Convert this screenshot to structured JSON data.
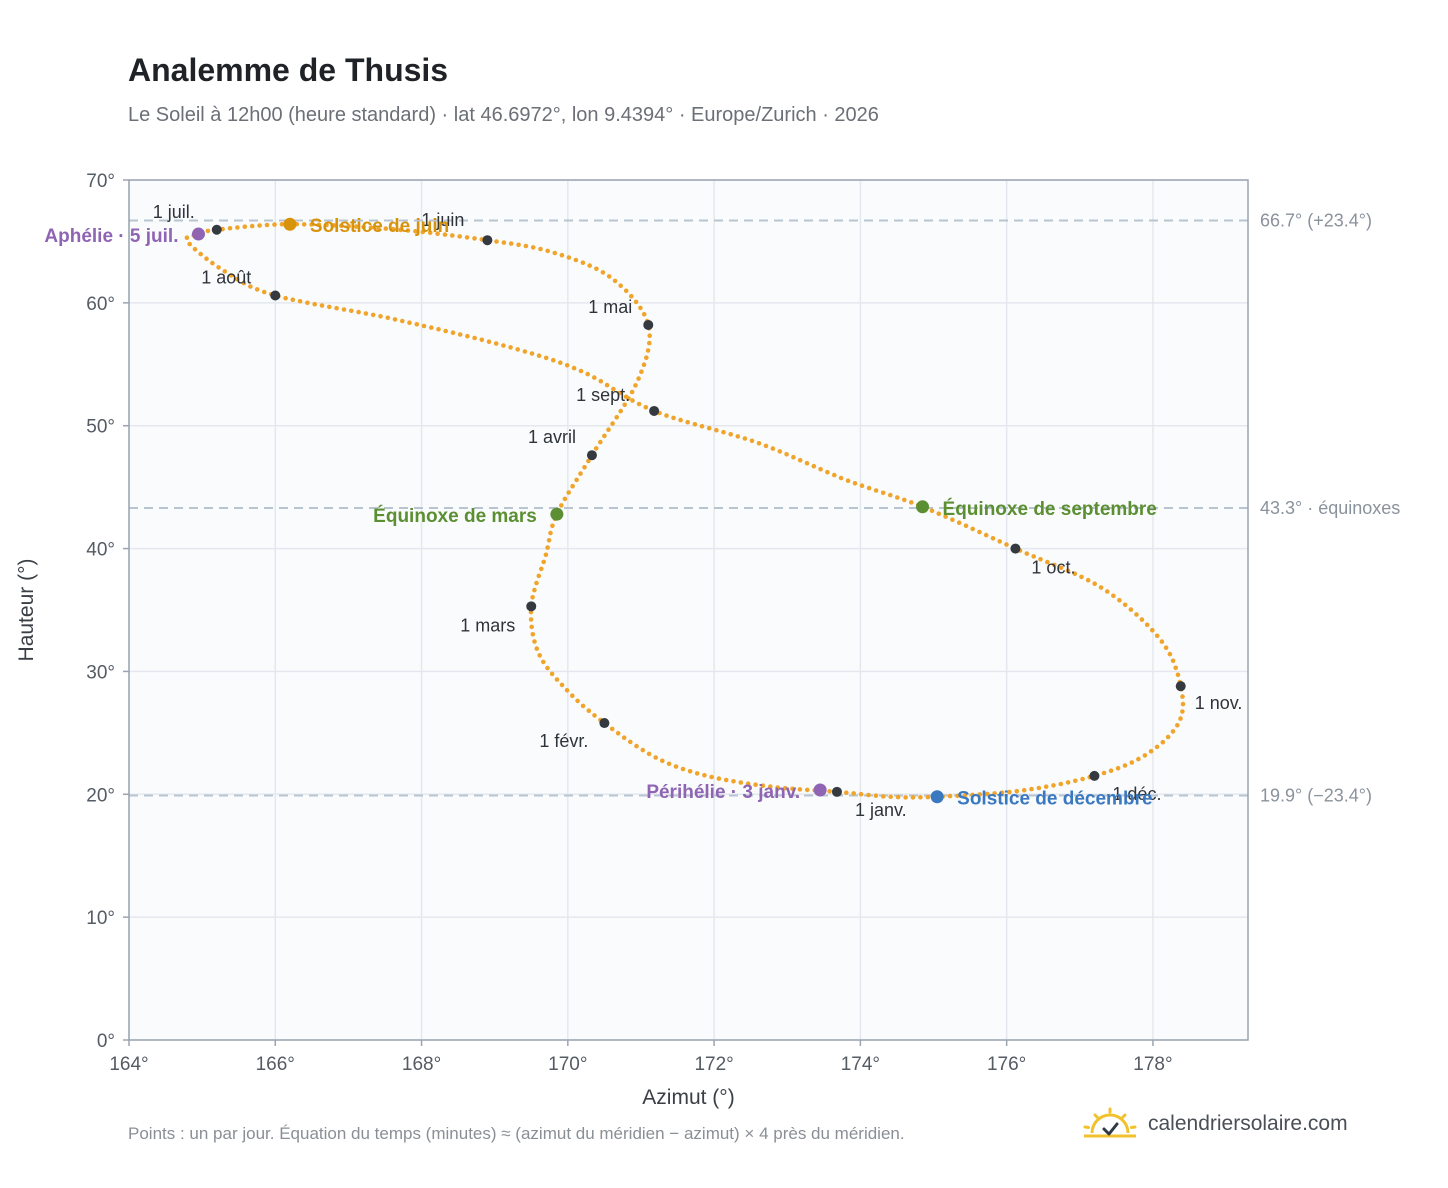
{
  "header": {
    "title": "Analemme de Thusis",
    "subtitle": "Le Soleil à 12h00 (heure standard) · lat 46.6972°, lon 9.4394° · Europe/Zurich · 2026"
  },
  "footer": {
    "note": "Points : un par jour. Équation du temps (minutes) ≈ (azimut du méridien − azimut) × 4 près du méridien.",
    "brand": "calendriersolaire.com",
    "brand_icon": "sun-check-icon"
  },
  "colors": {
    "curve": "#f0a42a",
    "month_marker": "#343a40",
    "equinox": "#5b8f31",
    "june_solstice": "#d8930c",
    "december_solstice": "#3a78bf",
    "aphelion_perihelion": "#8f65b3",
    "reference_line": "#b9c4d1",
    "plot_background": "#f9fbfd",
    "grid": "#e4e8ee"
  },
  "chart_data": {
    "type": "scatter",
    "xlabel": "Azimut (°)",
    "ylabel": "Hauteur (°)",
    "xlim": [
      164,
      179.3
    ],
    "ylim": [
      0,
      70
    ],
    "xticks": [
      164,
      166,
      168,
      170,
      172,
      174,
      176,
      178
    ],
    "xtick_labels": [
      "164°",
      "166°",
      "168°",
      "170°",
      "172°",
      "174°",
      "176°",
      "178°"
    ],
    "yticks": [
      0,
      10,
      20,
      30,
      40,
      50,
      60,
      70
    ],
    "ytick_labels": [
      "0°",
      "10°",
      "20°",
      "30°",
      "40°",
      "50°",
      "60°",
      "70°"
    ],
    "grid": true,
    "reference_lines": [
      {
        "y": 66.7,
        "label": "66.7° (+23.4°)"
      },
      {
        "y": 43.3,
        "label": "43.3° · équinoxes"
      },
      {
        "y": 19.9,
        "label": "19.9° (−23.4°)"
      }
    ],
    "month_markers": [
      {
        "label": "1 janv.",
        "x": 173.68,
        "y": 20.2
      },
      {
        "label": "1 févr.",
        "x": 170.5,
        "y": 25.8
      },
      {
        "label": "1 mars",
        "x": 169.5,
        "y": 35.3
      },
      {
        "label": "1 avril",
        "x": 170.33,
        "y": 47.6
      },
      {
        "label": "1 mai",
        "x": 171.1,
        "y": 58.2
      },
      {
        "label": "1 juin",
        "x": 168.9,
        "y": 65.1
      },
      {
        "label": "1 juil.",
        "x": 165.2,
        "y": 65.95
      },
      {
        "label": "1 août",
        "x": 166.0,
        "y": 60.6
      },
      {
        "label": "1 sept.",
        "x": 171.18,
        "y": 51.2
      },
      {
        "label": "1 oct.",
        "x": 176.12,
        "y": 40.0
      },
      {
        "label": "1 nov.",
        "x": 178.38,
        "y": 28.8
      },
      {
        "label": "1 déc.",
        "x": 177.2,
        "y": 21.5
      }
    ],
    "events": [
      {
        "label": "Solstice de juin",
        "x": 166.2,
        "y": 66.4,
        "color": "#d8930c"
      },
      {
        "label": "Solstice de décembre",
        "x": 175.05,
        "y": 19.8,
        "color": "#3a78bf"
      },
      {
        "label": "Équinoxe de mars",
        "x": 169.85,
        "y": 42.8,
        "color": "#5b8f31"
      },
      {
        "label": "Équinoxe de septembre",
        "x": 174.85,
        "y": 43.4,
        "color": "#5b8f31"
      },
      {
        "label": "Aphélie · 5 juil.",
        "x": 164.95,
        "y": 65.6,
        "color": "#8f65b3"
      },
      {
        "label": "Périhélie · 3 janv.",
        "x": 173.45,
        "y": 20.35,
        "color": "#8f65b3"
      }
    ],
    "series": [
      {
        "points_per_day": true,
        "path": [
          [
            173.68,
            20.2
          ],
          [
            172.8,
            20.6
          ],
          [
            171.9,
            21.5
          ],
          [
            171.2,
            23.0
          ],
          [
            170.5,
            25.8
          ],
          [
            170.0,
            28.4
          ],
          [
            169.6,
            31.5
          ],
          [
            169.5,
            35.3
          ],
          [
            169.7,
            39.5
          ],
          [
            169.85,
            42.8
          ],
          [
            170.33,
            47.6
          ],
          [
            170.95,
            53.6
          ],
          [
            171.1,
            58.2
          ],
          [
            170.6,
            62.0
          ],
          [
            169.8,
            64.1
          ],
          [
            168.9,
            65.1
          ],
          [
            167.6,
            66.0
          ],
          [
            166.2,
            66.4
          ],
          [
            165.2,
            65.95
          ],
          [
            164.95,
            65.6
          ],
          [
            164.8,
            65.0
          ],
          [
            165.3,
            62.6
          ],
          [
            166.0,
            60.6
          ],
          [
            167.6,
            58.7
          ],
          [
            169.2,
            56.4
          ],
          [
            170.2,
            54.4
          ],
          [
            171.18,
            51.2
          ],
          [
            172.6,
            48.6
          ],
          [
            173.8,
            45.6
          ],
          [
            174.85,
            43.4
          ],
          [
            176.12,
            40.0
          ],
          [
            177.3,
            36.8
          ],
          [
            178.1,
            32.6
          ],
          [
            178.38,
            28.8
          ],
          [
            178.35,
            25.8
          ],
          [
            177.9,
            23.2
          ],
          [
            177.2,
            21.5
          ],
          [
            176.2,
            20.3
          ],
          [
            175.05,
            19.8
          ],
          [
            174.4,
            19.8
          ],
          [
            173.68,
            20.2
          ]
        ]
      }
    ]
  }
}
